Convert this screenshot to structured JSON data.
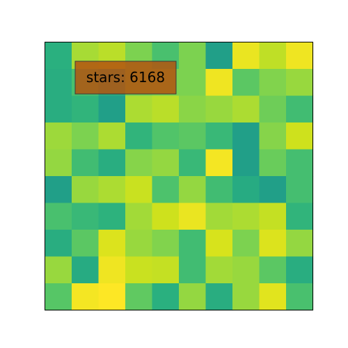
{
  "chart_data": {
    "type": "heatmap",
    "rows": 10,
    "cols": 10,
    "values": [
      [
        0.54,
        0.82,
        0.86,
        0.73,
        0.62,
        0.73,
        0.47,
        0.96,
        0.87,
        0.97
      ],
      [
        0.53,
        0.62,
        0.53,
        0.71,
        0.73,
        0.73,
        0.97,
        0.66,
        0.74,
        0.79
      ],
      [
        0.53,
        0.56,
        0.47,
        0.83,
        0.86,
        0.76,
        0.79,
        0.83,
        0.7,
        0.6
      ],
      [
        0.8,
        0.73,
        0.83,
        0.56,
        0.64,
        0.66,
        0.58,
        0.47,
        0.75,
        0.9
      ],
      [
        0.78,
        0.6,
        0.53,
        0.75,
        0.78,
        0.58,
        0.98,
        0.47,
        0.69,
        0.61
      ],
      [
        0.47,
        0.79,
        0.83,
        0.89,
        0.63,
        0.78,
        0.6,
        0.52,
        0.47,
        0.61
      ],
      [
        0.62,
        0.58,
        0.55,
        0.81,
        0.9,
        0.96,
        0.81,
        0.83,
        0.88,
        0.56
      ],
      [
        0.53,
        0.66,
        0.93,
        0.79,
        0.74,
        0.6,
        0.92,
        0.73,
        0.93,
        0.78
      ],
      [
        0.79,
        0.52,
        0.97,
        0.89,
        0.88,
        0.6,
        0.81,
        0.79,
        0.66,
        0.53
      ],
      [
        0.65,
        0.98,
        1.0,
        0.67,
        0.54,
        0.78,
        0.53,
        0.79,
        0.94,
        0.62
      ]
    ],
    "colormap": [
      "#1f9a8a",
      "#2ab07f",
      "#4ec36b",
      "#7ad151",
      "#a5db36",
      "#d2e21b",
      "#fde725"
    ],
    "value_range": [
      0.45,
      1.0
    ],
    "grid": false,
    "axes_ticks": false,
    "annotation": {
      "text": "stars: 6168",
      "box_color": "#b3540f",
      "box_alpha": 0.85,
      "border_color": "#3a3a3a"
    }
  }
}
